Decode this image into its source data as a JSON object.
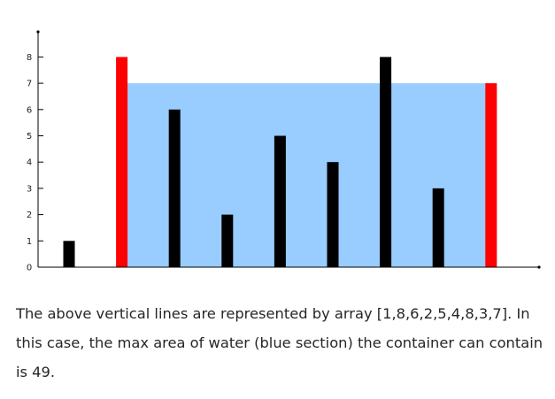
{
  "chart_data": {
    "type": "bar",
    "x": [
      1,
      2,
      3,
      4,
      5,
      6,
      7,
      8,
      9
    ],
    "values": [
      1,
      8,
      6,
      2,
      5,
      4,
      8,
      3,
      7
    ],
    "yticks": [
      0,
      1,
      2,
      3,
      4,
      5,
      6,
      7,
      8
    ],
    "ylim": [
      0,
      9
    ],
    "highlighted_indices": [
      1,
      8
    ],
    "water_level": 7,
    "grid": false,
    "title": "",
    "xlabel": "",
    "ylabel": ""
  },
  "colors": {
    "bar": "#000000",
    "highlight": "#ff0000",
    "water": "#99ccff",
    "axis": "#000000"
  },
  "caption": {
    "text": "The above vertical lines are represented by array [1,8,6,2,5,4,8,3,7]. In this case, the max area of water (blue section) the container can contain is 49."
  }
}
